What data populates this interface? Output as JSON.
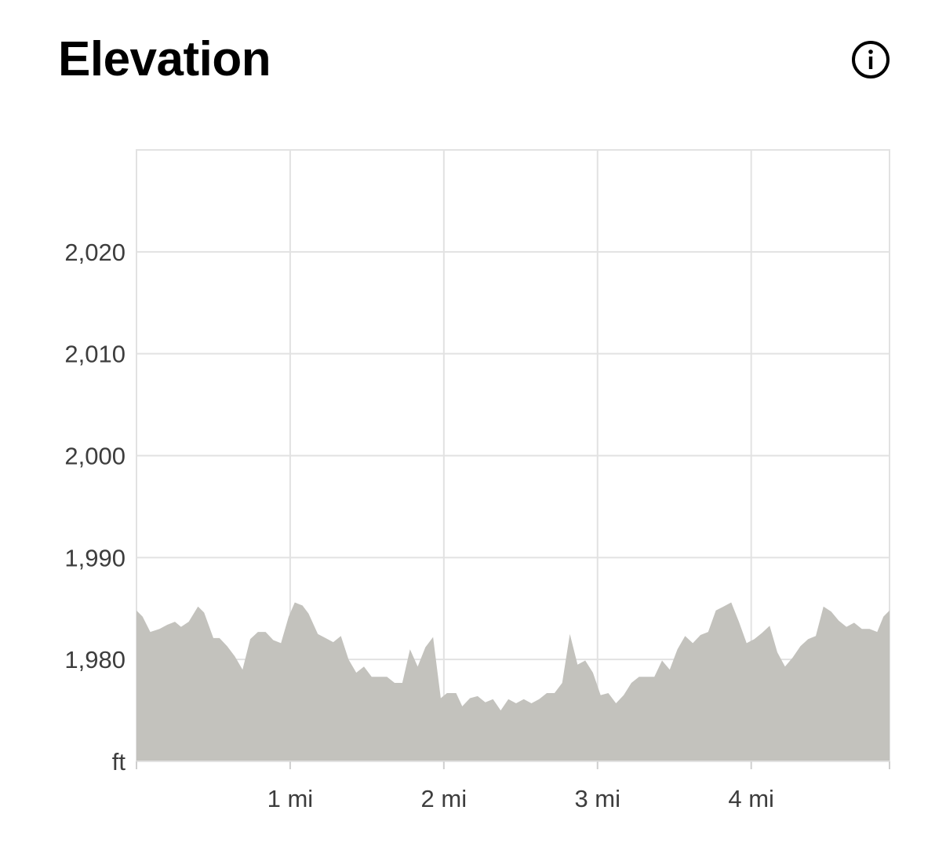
{
  "header": {
    "title": "Elevation",
    "info_icon": "info-circle-icon"
  },
  "colors": {
    "area_fill": "#c3c2bd",
    "grid": "#e2e2e2",
    "tick_text": "#3d3d3d",
    "title": "#000000"
  },
  "chart_data": {
    "type": "area",
    "title": "",
    "xlabel": "",
    "ylabel": "ft",
    "x_unit": "mi",
    "xlim": [
      0,
      4.9
    ],
    "ylim": [
      1970,
      2030
    ],
    "x_ticks": [
      {
        "value": 1,
        "label": "1 mi"
      },
      {
        "value": 2,
        "label": "2 mi"
      },
      {
        "value": 3,
        "label": "3 mi"
      },
      {
        "value": 4,
        "label": "4 mi"
      }
    ],
    "y_ticks": [
      {
        "value": 1980,
        "label": "1,980"
      },
      {
        "value": 1990,
        "label": "1,990"
      },
      {
        "value": 2000,
        "label": "2,000"
      },
      {
        "value": 2010,
        "label": "2,010"
      },
      {
        "value": 2020,
        "label": "2,020"
      }
    ],
    "y_unit_label": "ft",
    "grid": true,
    "legend": "none",
    "series": [
      {
        "x": [
          0,
          0.04,
          0.09,
          0.15,
          0.2,
          0.25,
          0.29,
          0.34,
          0.4,
          0.44,
          0.5,
          0.54,
          0.59,
          0.64,
          0.69,
          0.74,
          0.79,
          0.84,
          0.89,
          0.94,
          0.99,
          1.03,
          1.08,
          1.12,
          1.18,
          1.23,
          1.28,
          1.33,
          1.38,
          1.43,
          1.48,
          1.53,
          1.58,
          1.63,
          1.68,
          1.73,
          1.78,
          1.83,
          1.88,
          1.93,
          1.98,
          2.02,
          2.08,
          2.12,
          2.17,
          2.22,
          2.27,
          2.32,
          2.37,
          2.42,
          2.47,
          2.52,
          2.57,
          2.62,
          2.67,
          2.72,
          2.77,
          2.82,
          2.87,
          2.92,
          2.97,
          3.02,
          3.07,
          3.12,
          3.17,
          3.22,
          3.27,
          3.32,
          3.37,
          3.42,
          3.47,
          3.52,
          3.57,
          3.62,
          3.67,
          3.72,
          3.77,
          3.82,
          3.87,
          3.92,
          3.97,
          4.02,
          4.07,
          4.12,
          4.17,
          4.22,
          4.27,
          4.32,
          4.37,
          4.42,
          4.47,
          4.52,
          4.57,
          4.62,
          4.67,
          4.72,
          4.77,
          4.82,
          4.86,
          4.9
        ],
        "y": [
          1984.8,
          1984.2,
          1982.7,
          1983.0,
          1983.4,
          1983.7,
          1983.2,
          1983.7,
          1985.2,
          1984.6,
          1982.1,
          1982.1,
          1981.3,
          1980.3,
          1979.0,
          1982.0,
          1982.7,
          1982.7,
          1981.9,
          1981.6,
          1984.2,
          1985.6,
          1985.3,
          1984.5,
          1982.5,
          1982.1,
          1981.7,
          1982.3,
          1980.0,
          1978.7,
          1979.3,
          1978.3,
          1978.3,
          1978.3,
          1977.7,
          1977.7,
          1981.0,
          1979.3,
          1981.2,
          1982.2,
          1976.2,
          1976.7,
          1976.7,
          1975.4,
          1976.2,
          1976.4,
          1975.8,
          1976.1,
          1975.0,
          1976.1,
          1975.7,
          1976.1,
          1975.7,
          1976.1,
          1976.7,
          1976.7,
          1977.7,
          1982.5,
          1979.5,
          1979.9,
          1978.7,
          1976.5,
          1976.7,
          1975.7,
          1976.5,
          1977.7,
          1978.3,
          1978.3,
          1978.3,
          1979.9,
          1979.0,
          1981.0,
          1982.3,
          1981.6,
          1982.4,
          1982.7,
          1984.8,
          1985.2,
          1985.6,
          1983.7,
          1981.6,
          1982.0,
          1982.6,
          1983.3,
          1980.7,
          1979.3,
          1980.2,
          1981.3,
          1982.0,
          1982.3,
          1985.2,
          1984.7,
          1983.8,
          1983.2,
          1983.6,
          1983.0,
          1983.0,
          1982.7,
          1984.2,
          1984.8
        ]
      }
    ]
  }
}
